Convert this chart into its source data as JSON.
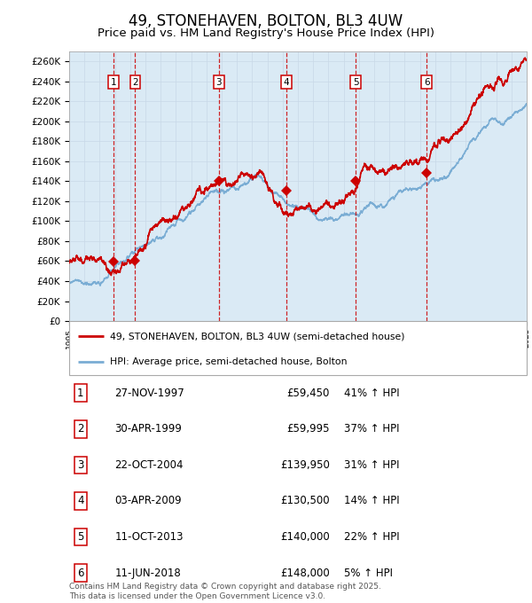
{
  "title": "49, STONEHAVEN, BOLTON, BL3 4UW",
  "subtitle": "Price paid vs. HM Land Registry's House Price Index (HPI)",
  "title_fontsize": 12,
  "subtitle_fontsize": 9.5,
  "ylim": [
    0,
    270000
  ],
  "yticks": [
    0,
    20000,
    40000,
    60000,
    80000,
    100000,
    120000,
    140000,
    160000,
    180000,
    200000,
    220000,
    240000,
    260000
  ],
  "ytick_labels": [
    "£0",
    "£20K",
    "£40K",
    "£60K",
    "£80K",
    "£100K",
    "£120K",
    "£140K",
    "£160K",
    "£180K",
    "£200K",
    "£220K",
    "£240K",
    "£260K"
  ],
  "xstart_year": 1995,
  "xend_year": 2025,
  "sale_dates_decimal": [
    1997.9,
    1999.33,
    2004.81,
    2009.25,
    2013.78,
    2018.44
  ],
  "sale_prices": [
    59450,
    59995,
    139950,
    130500,
    140000,
    148000
  ],
  "sale_labels": [
    "1",
    "2",
    "3",
    "4",
    "5",
    "6"
  ],
  "line_color_red": "#cc0000",
  "line_color_blue": "#7aadd4",
  "fill_color_blue": "#daeaf5",
  "background_color": "#ffffff",
  "grid_color": "#c8d8e8",
  "dashed_line_color": "#cc0000",
  "legend_label_red": "49, STONEHAVEN, BOLTON, BL3 4UW (semi-detached house)",
  "legend_label_blue": "HPI: Average price, semi-detached house, Bolton",
  "footer_text": "Contains HM Land Registry data © Crown copyright and database right 2025.\nThis data is licensed under the Open Government Licence v3.0.",
  "table_rows": [
    [
      "1",
      "27-NOV-1997",
      "£59,450",
      "41% ↑ HPI"
    ],
    [
      "2",
      "30-APR-1999",
      "£59,995",
      "37% ↑ HPI"
    ],
    [
      "3",
      "22-OCT-2004",
      "£139,950",
      "31% ↑ HPI"
    ],
    [
      "4",
      "03-APR-2009",
      "£130,500",
      "14% ↑ HPI"
    ],
    [
      "5",
      "11-OCT-2013",
      "£140,000",
      "22% ↑ HPI"
    ],
    [
      "6",
      "11-JUN-2018",
      "£148,000",
      "5% ↑ HPI"
    ]
  ]
}
